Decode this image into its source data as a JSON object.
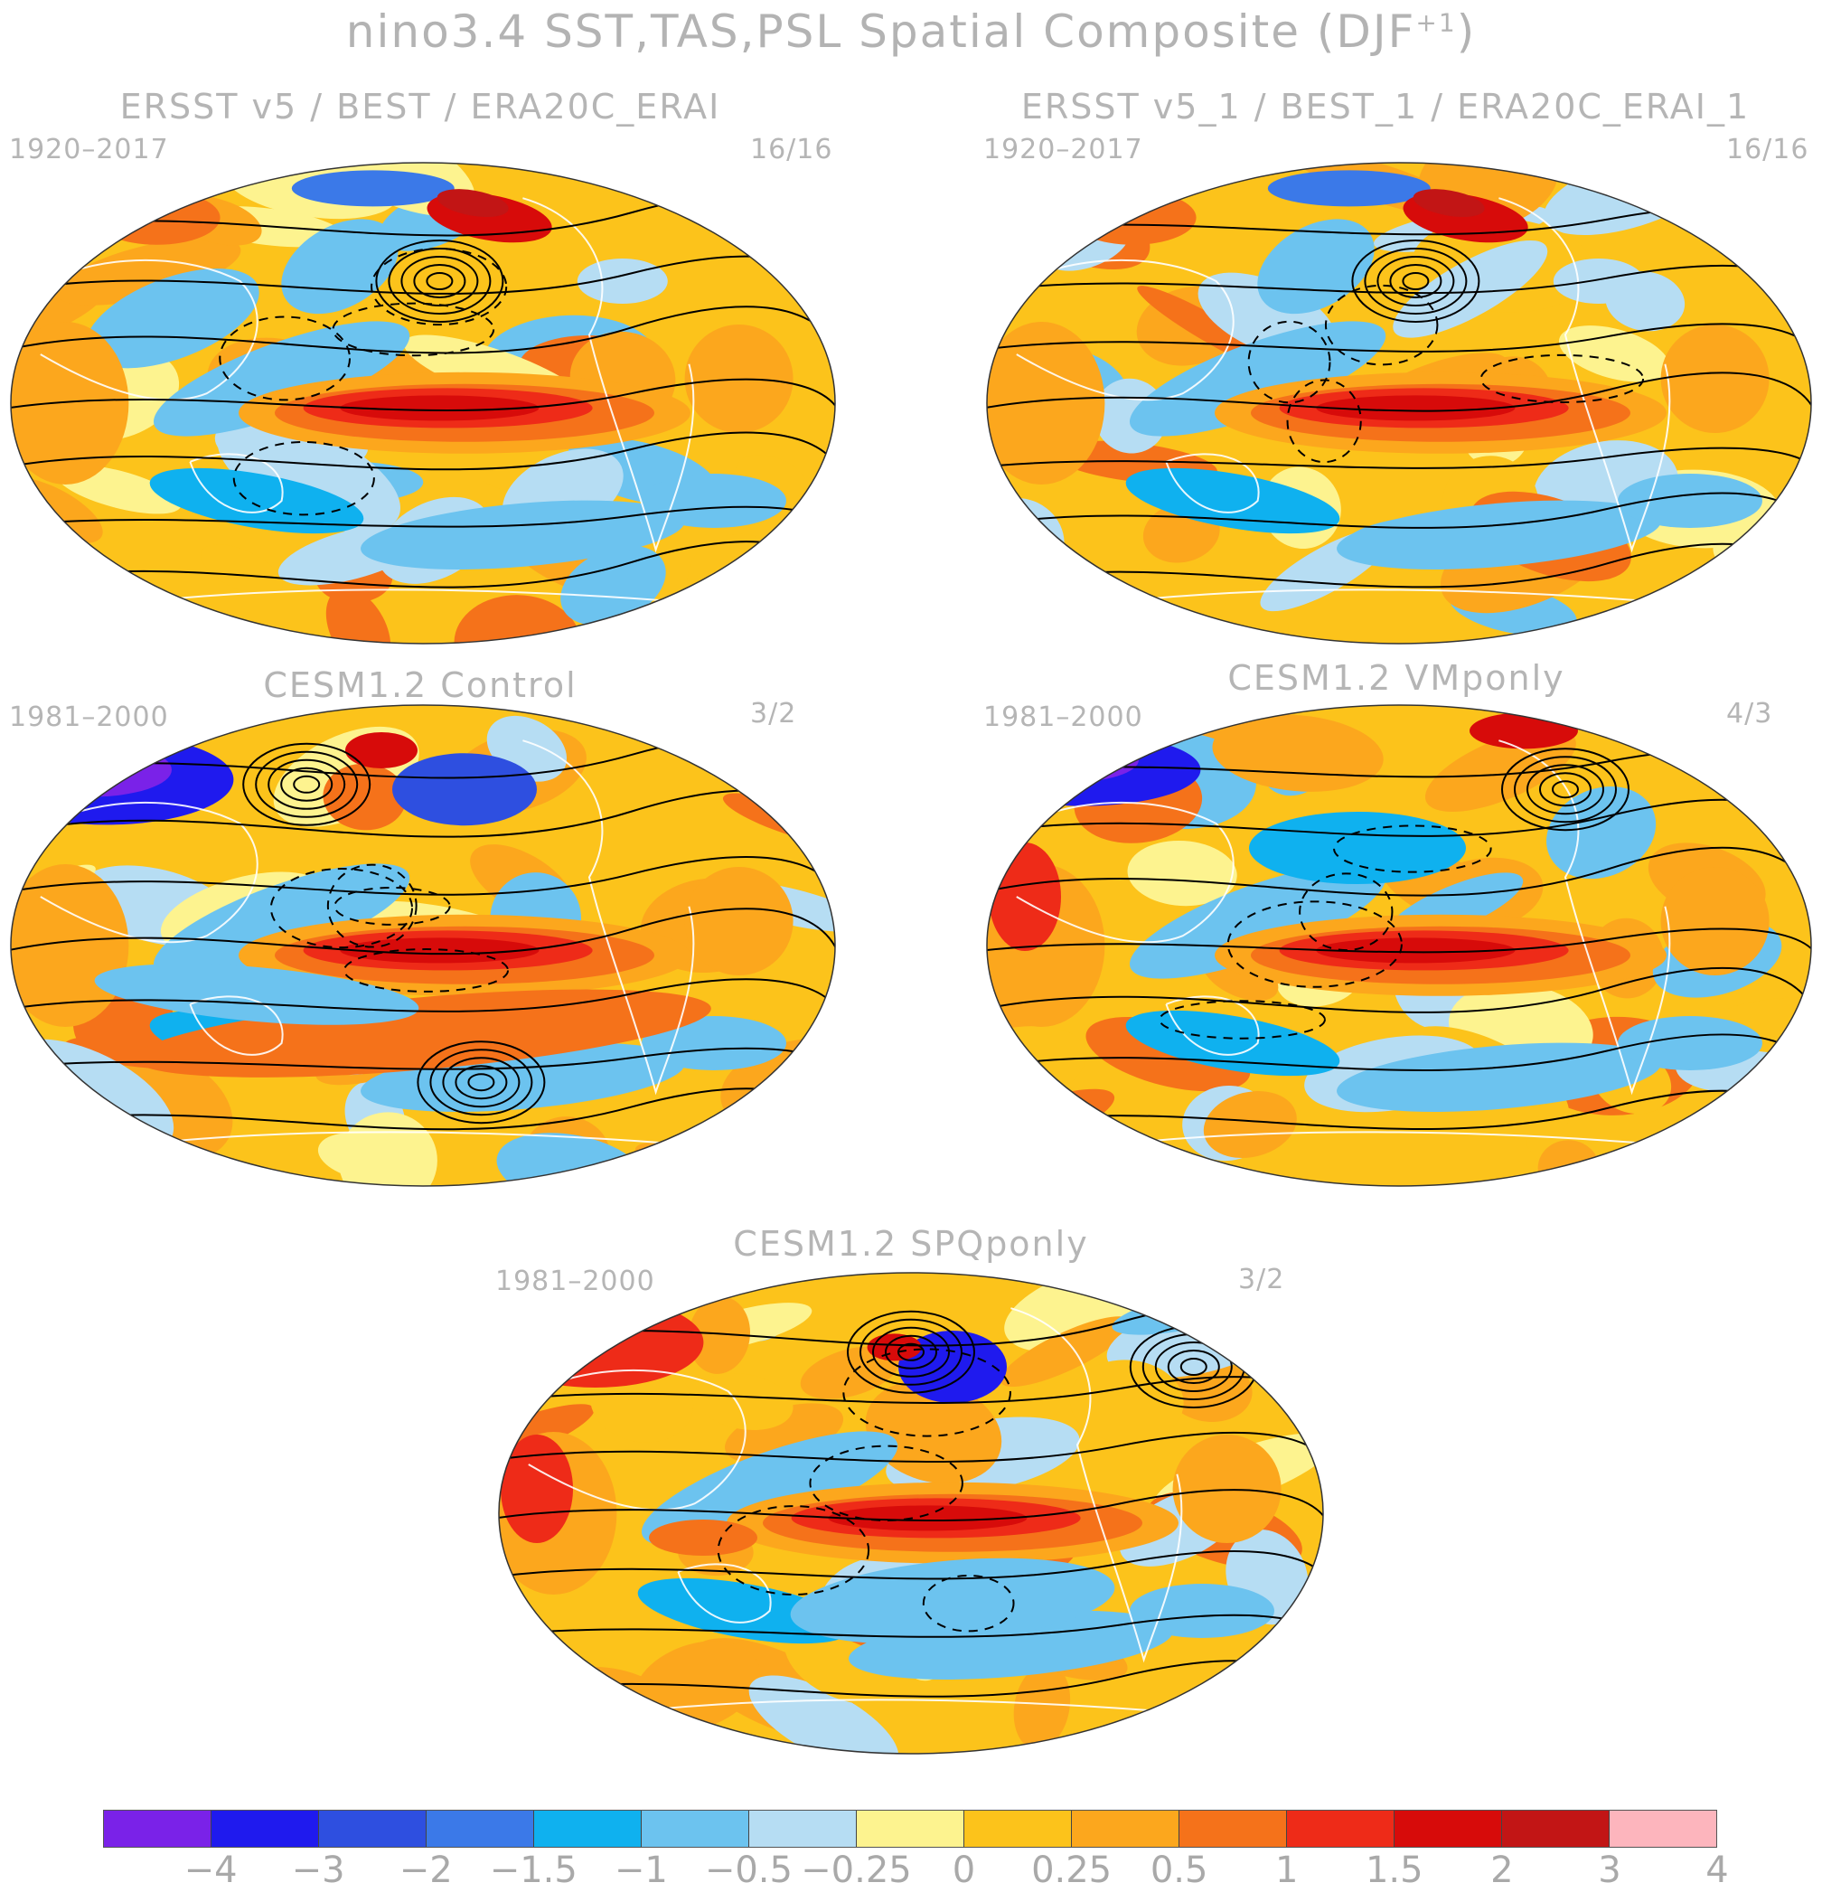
{
  "figure": {
    "title": "nino3.4 SST,TAS,PSL Spatial Composite (DJF",
    "title_sup": "+1",
    "title_end": ")"
  },
  "panels": [
    {
      "title": "ERSST v5 / BEST / ERA20C_ERAI",
      "period": "1920–2017",
      "count": "16/16",
      "variant": "obs"
    },
    {
      "title": "ERSST v5_1 / BEST_1 / ERA20C_ERAI_1",
      "period": "1920–2017",
      "count": "16/16",
      "variant": "obs"
    },
    {
      "title": "CESM1.2 Control",
      "period": "1981–2000",
      "count": "3/2",
      "variant": "ctrl"
    },
    {
      "title": "CESM1.2 VMponly",
      "period": "1981–2000",
      "count": "4/3",
      "variant": "vmp"
    },
    {
      "title": "CESM1.2 SPQponly",
      "period": "1981–2000",
      "count": "3/2",
      "variant": "spq"
    }
  ],
  "colorbar": {
    "colors": [
      "#7a22e8",
      "#1f1aee",
      "#2e4fe0",
      "#3b79e8",
      "#0fb1ef",
      "#6cc3ef",
      "#b6ddf3",
      "#fdf38f",
      "#fcc31b",
      "#fca71d",
      "#f5721a",
      "#ee2b18",
      "#d70b0a",
      "#c21515",
      "#fdb5bd"
    ],
    "tick_labels": [
      "−4",
      "−3",
      "−2",
      "−1.5",
      "−1",
      "−0.5",
      "−0.25",
      "0",
      "0.25",
      "0.5",
      "1",
      "1.5",
      "2",
      "3",
      "4"
    ]
  }
}
